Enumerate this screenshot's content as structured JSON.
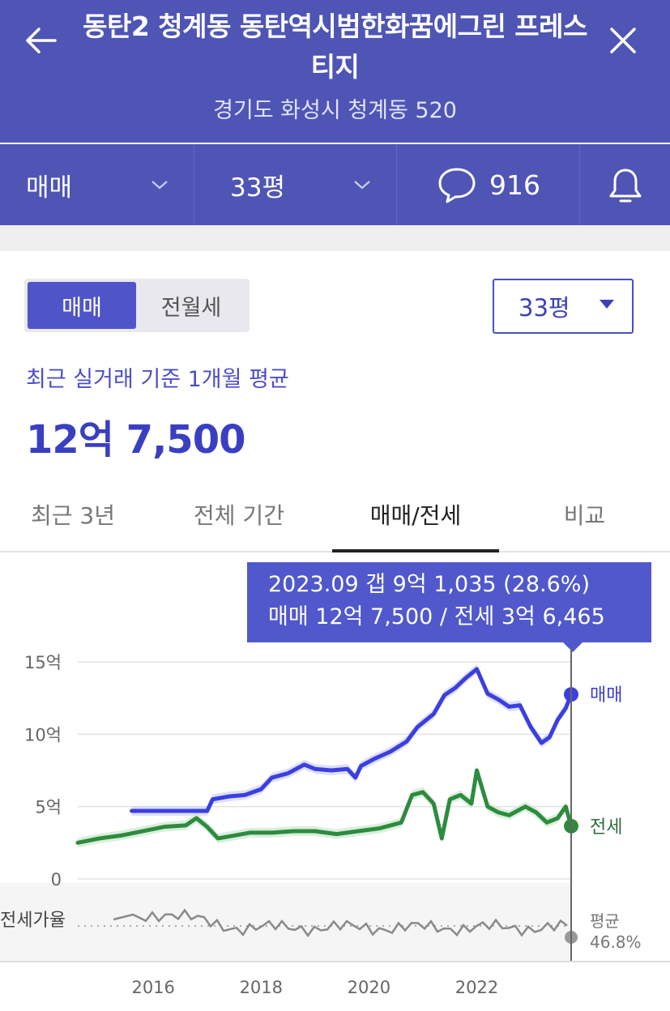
{
  "header": {
    "title": "동탄2 청계동 동탄역시범한화꿈에그린 프레스티지",
    "address": "경기도 화성시 청계동 520"
  },
  "toolbar": {
    "type_label": "매매",
    "size_label": "33평",
    "comment_count": "916"
  },
  "segment": {
    "active": "매매",
    "inactive": "전월세"
  },
  "size_select": {
    "value": "33평"
  },
  "average": {
    "label": "최근 실거래 기준 1개월 평균",
    "value": "12억 7,500"
  },
  "tabs": [
    {
      "label": "최근 3년",
      "active": false
    },
    {
      "label": "전체 기간",
      "active": false
    },
    {
      "label": "매매/전세",
      "active": true
    },
    {
      "label": "비교",
      "active": false
    }
  ],
  "tooltip": {
    "line1": "2023.09  갭 9억 1,035 (28.6%)",
    "line2": "매매 12억 7,500 / 전세 3억 6,465"
  },
  "colors": {
    "header": "#4f55b5",
    "sale": "#3b3fe0",
    "jeonse": "#2e8b3e",
    "ratio": "#8a8a8a",
    "accent": "#4f55c8"
  },
  "chart_data": {
    "type": "line",
    "y_unit": "억",
    "ylim": [
      0,
      15
    ],
    "y_ticks": [
      {
        "value": 15,
        "label": "15억"
      },
      {
        "value": 10,
        "label": "10억"
      },
      {
        "value": 5,
        "label": "5억"
      },
      {
        "value": 0,
        "label": "0"
      }
    ],
    "x_ticks": [
      {
        "value": 2016,
        "label": "2016"
      },
      {
        "value": 2018,
        "label": "2018"
      },
      {
        "value": 2020,
        "label": "2020"
      },
      {
        "value": 2022,
        "label": "2022"
      }
    ],
    "xlim": [
      2014.6,
      2023.75
    ],
    "grid": true,
    "series": [
      {
        "name": "매매",
        "points": [
          [
            2015.6,
            4.7
          ],
          [
            2016.5,
            4.7
          ],
          [
            2017.0,
            4.7
          ],
          [
            2017.1,
            5.5
          ],
          [
            2017.4,
            5.7
          ],
          [
            2017.7,
            5.8
          ],
          [
            2018.0,
            6.2
          ],
          [
            2018.2,
            7.0
          ],
          [
            2018.5,
            7.3
          ],
          [
            2018.8,
            7.9
          ],
          [
            2019.0,
            7.6
          ],
          [
            2019.3,
            7.5
          ],
          [
            2019.6,
            7.6
          ],
          [
            2019.75,
            7.0
          ],
          [
            2019.85,
            7.8
          ],
          [
            2020.1,
            8.3
          ],
          [
            2020.4,
            8.8
          ],
          [
            2020.7,
            9.5
          ],
          [
            2020.9,
            10.5
          ],
          [
            2021.2,
            11.4
          ],
          [
            2021.4,
            12.7
          ],
          [
            2021.6,
            13.2
          ],
          [
            2021.8,
            13.9
          ],
          [
            2022.0,
            14.5
          ],
          [
            2022.2,
            12.8
          ],
          [
            2022.4,
            12.4
          ],
          [
            2022.6,
            11.9
          ],
          [
            2022.8,
            12.0
          ],
          [
            2023.0,
            10.5
          ],
          [
            2023.2,
            9.4
          ],
          [
            2023.35,
            9.8
          ],
          [
            2023.5,
            11.0
          ],
          [
            2023.65,
            11.8
          ],
          [
            2023.75,
            12.75
          ]
        ],
        "end_label": "매매"
      },
      {
        "name": "전세",
        "points": [
          [
            2014.6,
            2.5
          ],
          [
            2015.0,
            2.8
          ],
          [
            2015.4,
            3.0
          ],
          [
            2015.8,
            3.3
          ],
          [
            2016.2,
            3.6
          ],
          [
            2016.6,
            3.7
          ],
          [
            2016.8,
            4.2
          ],
          [
            2017.0,
            3.6
          ],
          [
            2017.2,
            2.8
          ],
          [
            2017.5,
            3.0
          ],
          [
            2017.8,
            3.2
          ],
          [
            2018.2,
            3.2
          ],
          [
            2018.6,
            3.3
          ],
          [
            2019.0,
            3.3
          ],
          [
            2019.4,
            3.1
          ],
          [
            2019.8,
            3.3
          ],
          [
            2020.2,
            3.5
          ],
          [
            2020.6,
            3.9
          ],
          [
            2020.8,
            5.8
          ],
          [
            2021.0,
            6.0
          ],
          [
            2021.2,
            5.2
          ],
          [
            2021.35,
            2.8
          ],
          [
            2021.5,
            5.5
          ],
          [
            2021.7,
            5.8
          ],
          [
            2021.9,
            5.2
          ],
          [
            2022.0,
            7.5
          ],
          [
            2022.2,
            5.0
          ],
          [
            2022.4,
            4.6
          ],
          [
            2022.6,
            4.4
          ],
          [
            2022.9,
            5.0
          ],
          [
            2023.1,
            4.6
          ],
          [
            2023.3,
            3.9
          ],
          [
            2023.5,
            4.2
          ],
          [
            2023.65,
            5.0
          ],
          [
            2023.75,
            3.65
          ]
        ],
        "end_label": "전세"
      }
    ],
    "ratio": {
      "label": "전세가율",
      "average_label": "평균",
      "average_value": "46.8%"
    }
  }
}
